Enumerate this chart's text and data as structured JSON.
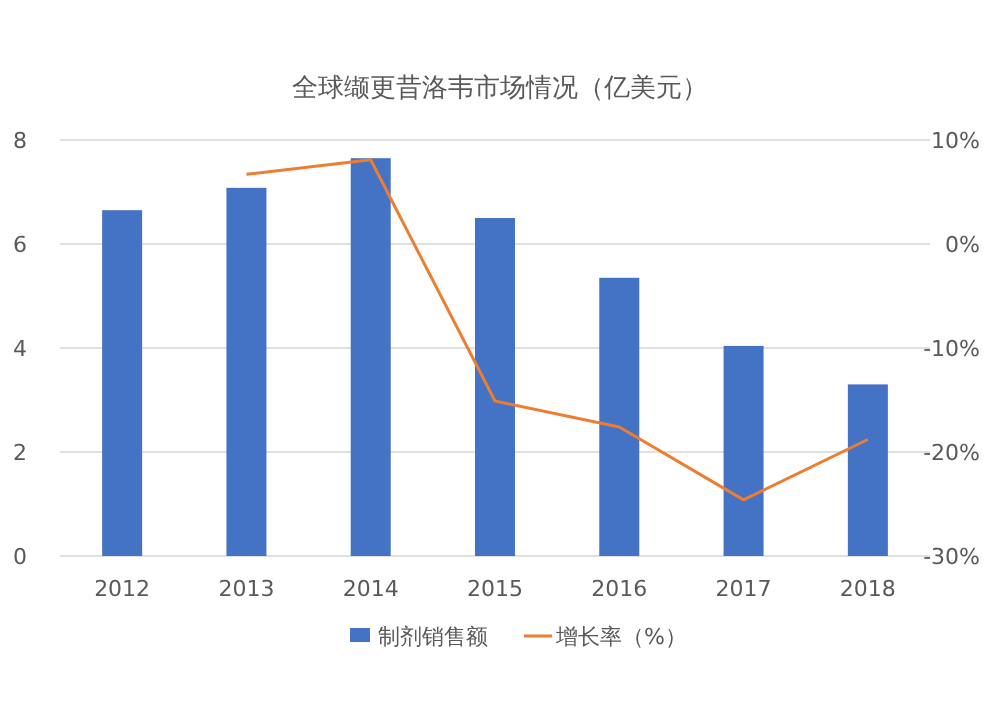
{
  "chart_data": {
    "type": "bar",
    "title": "全球缬更昔洛韦市场情况（亿美元）",
    "categories": [
      "2012",
      "2013",
      "2014",
      "2015",
      "2016",
      "2017",
      "2018"
    ],
    "series": [
      {
        "name": "制剂销售额",
        "color": "#4472c4",
        "values": [
          6.65,
          7.08,
          7.65,
          6.5,
          5.35,
          4.04,
          3.3
        ]
      },
      {
        "name": "增长率（%）",
        "type": "line",
        "axis": "y2",
        "color": "#ed7d31",
        "values": [
          null,
          6.7,
          8.1,
          -15.1,
          -17.6,
          -24.6,
          -18.8
        ]
      }
    ],
    "ylim": [
      0,
      8
    ],
    "yticks": [
      0,
      2,
      4,
      6,
      8
    ],
    "y2lim": [
      -30,
      10
    ],
    "y2ticks": [
      {
        "value": -30,
        "label": "-30%"
      },
      {
        "value": -20,
        "label": "-20%"
      },
      {
        "value": -10,
        "label": "-10%"
      },
      {
        "value": 0,
        "label": "0%"
      },
      {
        "value": 10,
        "label": "10%"
      }
    ],
    "grid": "y",
    "legend": "bottom",
    "marker": "none",
    "line_style": "solid"
  }
}
